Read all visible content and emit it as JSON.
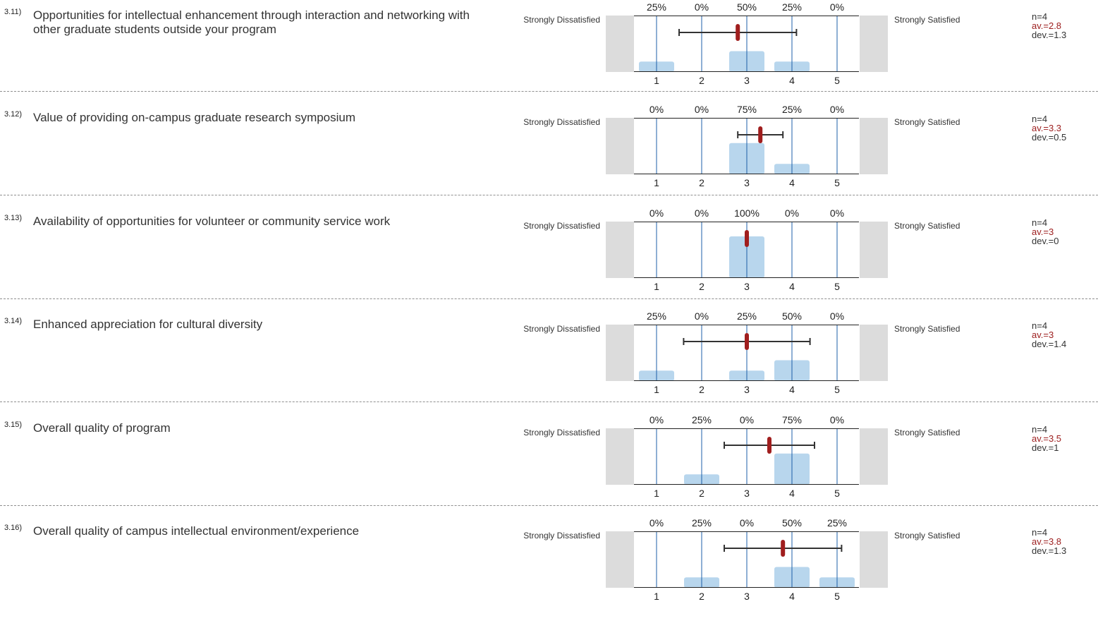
{
  "labels": {
    "left": "Strongly Dissatisfied",
    "right": "Strongly Satisfied"
  },
  "colors": {
    "bar": "#b8d6ed",
    "gridline": "#1d5fa8",
    "mean": "#a01e1e",
    "side_box": "#dcdcdc"
  },
  "chart_data": [
    {
      "type": "bar",
      "id": "3.11)",
      "title": "Opportunities for intellectual enhancement through interaction and networking with other graduate students outside your program",
      "categories": [
        "1",
        "2",
        "3",
        "4",
        "5"
      ],
      "pct_labels": [
        "25%",
        "0%",
        "50%",
        "25%",
        "0%"
      ],
      "values": [
        25,
        0,
        50,
        25,
        0
      ],
      "mean": 2.8,
      "dev": 1.3,
      "stats": {
        "n": "n=4",
        "av": "av.=2.8",
        "dev": "dev.=1.3"
      }
    },
    {
      "type": "bar",
      "id": "3.12)",
      "title": "Value of providing on-campus graduate research symposium",
      "categories": [
        "1",
        "2",
        "3",
        "4",
        "5"
      ],
      "pct_labels": [
        "0%",
        "0%",
        "75%",
        "25%",
        "0%"
      ],
      "values": [
        0,
        0,
        75,
        25,
        0
      ],
      "mean": 3.3,
      "dev": 0.5,
      "stats": {
        "n": "n=4",
        "av": "av.=3.3",
        "dev": "dev.=0.5"
      }
    },
    {
      "type": "bar",
      "id": "3.13)",
      "title": "Availability of opportunities for volunteer or community service work",
      "categories": [
        "1",
        "2",
        "3",
        "4",
        "5"
      ],
      "pct_labels": [
        "0%",
        "0%",
        "100%",
        "0%",
        "0%"
      ],
      "values": [
        0,
        0,
        100,
        0,
        0
      ],
      "mean": 3,
      "dev": 0,
      "stats": {
        "n": "n=4",
        "av": "av.=3",
        "dev": "dev.=0"
      }
    },
    {
      "type": "bar",
      "id": "3.14)",
      "title": "Enhanced appreciation for cultural diversity",
      "categories": [
        "1",
        "2",
        "3",
        "4",
        "5"
      ],
      "pct_labels": [
        "25%",
        "0%",
        "25%",
        "50%",
        "0%"
      ],
      "values": [
        25,
        0,
        25,
        50,
        0
      ],
      "mean": 3,
      "dev": 1.4,
      "stats": {
        "n": "n=4",
        "av": "av.=3",
        "dev": "dev.=1.4"
      }
    },
    {
      "type": "bar",
      "id": "3.15)",
      "title": "Overall quality of program",
      "categories": [
        "1",
        "2",
        "3",
        "4",
        "5"
      ],
      "pct_labels": [
        "0%",
        "25%",
        "0%",
        "75%",
        "0%"
      ],
      "values": [
        0,
        25,
        0,
        75,
        0
      ],
      "mean": 3.5,
      "dev": 1,
      "stats": {
        "n": "n=4",
        "av": "av.=3.5",
        "dev": "dev.=1"
      }
    },
    {
      "type": "bar",
      "id": "3.16)",
      "title": "Overall quality of campus intellectual environment/experience",
      "categories": [
        "1",
        "2",
        "3",
        "4",
        "5"
      ],
      "pct_labels": [
        "0%",
        "25%",
        "0%",
        "50%",
        "25%"
      ],
      "values": [
        0,
        25,
        0,
        50,
        25
      ],
      "mean": 3.8,
      "dev": 1.3,
      "stats": {
        "n": "n=4",
        "av": "av.=3.8",
        "dev": "dev.=1.3"
      }
    }
  ]
}
